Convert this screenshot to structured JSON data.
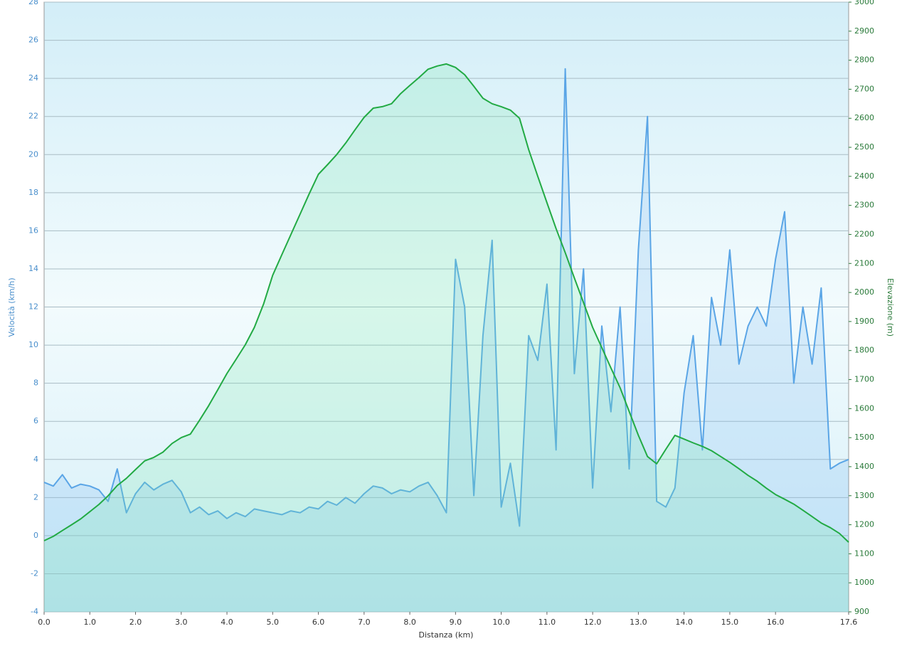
{
  "chart_data": {
    "type": "line",
    "xlabel": "Distanza  (km)",
    "ylabel": "Velocità (km/h)",
    "y2label": "Elevazione (m)",
    "x": [
      0,
      0.2,
      0.4,
      0.6,
      0.8,
      1.0,
      1.2,
      1.4,
      1.6,
      1.8,
      2.0,
      2.2,
      2.4,
      2.6,
      2.8,
      3.0,
      3.2,
      3.4,
      3.6,
      3.8,
      4.0,
      4.2,
      4.4,
      4.6,
      4.8,
      5.0,
      5.2,
      5.4,
      5.6,
      5.8,
      6.0,
      6.2,
      6.4,
      6.6,
      6.8,
      7.0,
      7.2,
      7.4,
      7.6,
      7.8,
      8.0,
      8.2,
      8.4,
      8.6,
      8.8,
      9.0,
      9.2,
      9.4,
      9.6,
      9.8,
      10.0,
      10.2,
      10.4,
      10.6,
      10.8,
      11.0,
      11.2,
      11.4,
      11.6,
      11.8,
      12.0,
      12.2,
      12.4,
      12.6,
      12.8,
      13.0,
      13.2,
      13.4,
      13.6,
      13.8,
      14.0,
      14.2,
      14.4,
      14.6,
      14.8,
      15.0,
      15.2,
      15.4,
      15.6,
      15.8,
      16.0,
      16.2,
      16.4,
      16.6,
      16.8,
      17.0,
      17.2,
      17.4,
      17.6
    ],
    "series": [
      {
        "name": "Velocità",
        "color": "#5aa5e6",
        "axis": "y",
        "values": [
          2.8,
          2.6,
          3.2,
          2.5,
          2.7,
          2.6,
          2.4,
          1.8,
          3.5,
          1.2,
          2.2,
          2.8,
          2.4,
          2.7,
          2.9,
          2.3,
          1.2,
          1.5,
          1.1,
          1.3,
          0.9,
          1.2,
          1.0,
          1.4,
          1.3,
          1.2,
          1.1,
          1.3,
          1.2,
          1.5,
          1.4,
          1.8,
          1.6,
          2.0,
          1.7,
          2.2,
          2.6,
          2.5,
          2.2,
          2.4,
          2.3,
          2.6,
          2.8,
          2.1,
          1.2,
          14.5,
          12,
          2.1,
          10.5,
          15.5,
          1.5,
          3.8,
          0.5,
          10.5,
          9.2,
          13.2,
          4.5,
          24.5,
          8.5,
          14,
          2.5,
          11,
          6.5,
          12,
          3.5,
          15,
          22,
          1.8,
          1.5,
          2.5,
          7.5,
          10.5,
          4.5,
          12.5,
          10,
          15,
          9,
          11,
          12,
          11,
          14.5,
          17,
          8,
          12,
          9,
          13,
          3.5,
          3.8,
          4.0
        ]
      },
      {
        "name": "Elevazione",
        "color": "#22aa44",
        "axis": "y2",
        "values": [
          1145,
          1160,
          1180,
          1200,
          1220,
          1245,
          1270,
          1300,
          1335,
          1360,
          1390,
          1420,
          1432,
          1450,
          1480,
          1500,
          1512,
          1560,
          1610,
          1665,
          1721,
          1770,
          1820,
          1880,
          1960,
          2059,
          2130,
          2200,
          2270,
          2340,
          2407,
          2440,
          2475,
          2515,
          2560,
          2603,
          2635,
          2640,
          2650,
          2685,
          2713,
          2740,
          2769,
          2780,
          2787,
          2775,
          2750,
          2710,
          2669,
          2650,
          2640,
          2628,
          2600,
          2492,
          2400,
          2309,
          2220,
          2137,
          2050,
          1965,
          1880,
          1810,
          1740,
          1672,
          1590,
          1508,
          1435,
          1410,
          1460,
          1508,
          1495,
          1482,
          1470,
          1455,
          1435,
          1415,
          1393,
          1370,
          1350,
          1326,
          1304,
          1288,
          1271,
          1250,
          1228,
          1206,
          1190,
          1170,
          1140
        ]
      }
    ],
    "xlim": [
      0,
      17.6
    ],
    "xticks": [
      {
        "value": 0,
        "label": "0.0"
      },
      {
        "value": 1,
        "label": "1.0"
      },
      {
        "value": 2,
        "label": "2.0"
      },
      {
        "value": 3,
        "label": "3.0"
      },
      {
        "value": 4,
        "label": "4.0"
      },
      {
        "value": 5,
        "label": "5.0"
      },
      {
        "value": 6,
        "label": "6.0"
      },
      {
        "value": 7,
        "label": "7.0"
      },
      {
        "value": 8,
        "label": "8.0"
      },
      {
        "value": 9,
        "label": "9.0"
      },
      {
        "value": 10,
        "label": "10.0"
      },
      {
        "value": 11,
        "label": "11.0"
      },
      {
        "value": 12,
        "label": "12.0"
      },
      {
        "value": 13,
        "label": "13.0"
      },
      {
        "value": 14,
        "label": "14.0"
      },
      {
        "value": 15,
        "label": "15.0"
      },
      {
        "value": 16,
        "label": "16.0"
      },
      {
        "value": 17.6,
        "label": "17.6"
      }
    ],
    "ylim": [
      -4,
      28
    ],
    "yticks": [
      -4,
      -2,
      0,
      2,
      4,
      6,
      8,
      10,
      12,
      14,
      16,
      18,
      20,
      22,
      24,
      26,
      28
    ],
    "y2lim": [
      900,
      3000
    ],
    "y2ticks": [
      900,
      1000,
      1100,
      1200,
      1300,
      1400,
      1500,
      1600,
      1700,
      1800,
      1900,
      2000,
      2100,
      2200,
      2300,
      2400,
      2500,
      2600,
      2700,
      2800,
      2900,
      3000
    ],
    "grid": true
  }
}
